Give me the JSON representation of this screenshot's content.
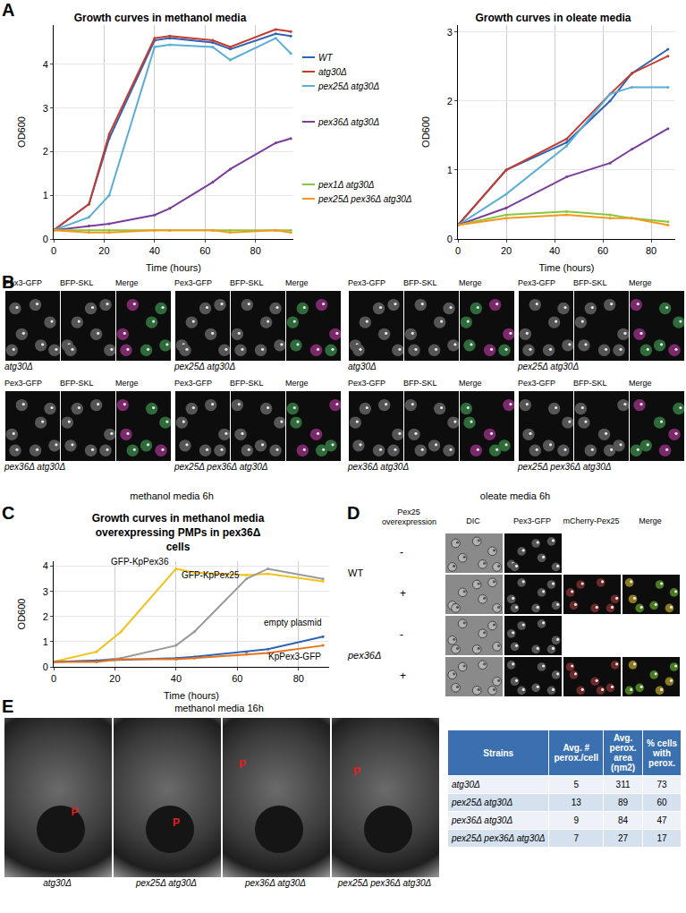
{
  "panel_letters": [
    "A",
    "B",
    "C",
    "D",
    "E"
  ],
  "chart_data": [
    {
      "type": "line",
      "title": "Growth curves in methanol media",
      "x_label": "Time (hours)",
      "y_label": "OD600",
      "x": [
        0,
        14,
        22,
        40,
        46,
        63,
        70,
        88,
        94
      ],
      "xlim": [
        0,
        95
      ],
      "ylim": [
        0,
        4.9
      ],
      "xticks": [
        0,
        20,
        40,
        60,
        80
      ],
      "yticks": [
        0,
        1,
        2,
        3,
        4
      ],
      "grid": true,
      "marker": "circle",
      "series": [
        {
          "name": "WT",
          "color": "#2f64b5",
          "values": [
            0.2,
            0.8,
            2.3,
            4.55,
            4.6,
            4.5,
            4.35,
            4.7,
            4.65
          ]
        },
        {
          "name": "atg30Δ",
          "color": "#c73a2e",
          "values": [
            0.2,
            0.8,
            2.4,
            4.6,
            4.65,
            4.55,
            4.4,
            4.8,
            4.75
          ]
        },
        {
          "name": "pex25Δ atg30Δ",
          "color": "#5aaed6",
          "values": [
            0.2,
            0.5,
            1.0,
            4.4,
            4.45,
            4.4,
            4.1,
            4.6,
            4.25
          ]
        },
        {
          "name": "pex36Δ atg30Δ",
          "color": "#7a3d9c",
          "values": [
            0.2,
            0.3,
            0.35,
            0.55,
            0.7,
            1.3,
            1.6,
            2.2,
            2.3
          ]
        },
        {
          "name": "pex1Δ atg30Δ",
          "color": "#8cc63f",
          "values": [
            0.2,
            0.2,
            0.2,
            0.2,
            0.2,
            0.2,
            0.2,
            0.2,
            0.2
          ]
        },
        {
          "name": "pex25Δ pex36Δ atg30Δ",
          "color": "#f39a1e",
          "values": [
            0.2,
            0.15,
            0.15,
            0.2,
            0.2,
            0.2,
            0.15,
            0.2,
            0.15
          ]
        }
      ]
    },
    {
      "type": "line",
      "title": "Growth curves in oleate media",
      "x_label": "Time (hours)",
      "y_label": "OD600",
      "x": [
        0,
        20,
        45,
        63,
        72,
        87
      ],
      "xlim": [
        0,
        90
      ],
      "ylim": [
        0,
        3.1
      ],
      "xticks": [
        0,
        20,
        40,
        60,
        80
      ],
      "yticks": [
        0,
        1,
        2,
        3
      ],
      "grid": true,
      "marker": "circle",
      "series": [
        {
          "name": "WT",
          "color": "#2f64b5",
          "values": [
            0.2,
            1.0,
            1.4,
            2.0,
            2.4,
            2.75
          ]
        },
        {
          "name": "atg30Δ",
          "color": "#c73a2e",
          "values": [
            0.2,
            1.0,
            1.45,
            2.1,
            2.4,
            2.65
          ]
        },
        {
          "name": "pex25Δ atg30Δ",
          "color": "#5aaed6",
          "values": [
            0.2,
            0.65,
            1.35,
            2.1,
            2.2,
            2.2
          ]
        },
        {
          "name": "pex36Δ atg30Δ",
          "color": "#7a3d9c",
          "values": [
            0.2,
            0.45,
            0.9,
            1.1,
            1.3,
            1.6
          ]
        },
        {
          "name": "pex1Δ atg30Δ",
          "color": "#8cc63f",
          "values": [
            0.2,
            0.35,
            0.4,
            0.35,
            0.3,
            0.25
          ]
        },
        {
          "name": "pex25Δ pex36Δ atg30Δ",
          "color": "#f39a1e",
          "values": [
            0.2,
            0.3,
            0.35,
            0.3,
            0.3,
            0.2
          ]
        }
      ]
    },
    {
      "type": "line",
      "title": "Growth curves in methanol media overexpressing PMPs in pex36Δ cells",
      "x_label": "Time (hours)",
      "y_label": "OD600",
      "x": [
        0,
        14,
        22,
        40,
        46,
        63,
        70,
        88
      ],
      "xlim": [
        0,
        90
      ],
      "ylim": [
        0,
        4.2
      ],
      "xticks": [
        0,
        20,
        40,
        60,
        80
      ],
      "yticks": [
        0,
        1,
        2,
        3,
        4
      ],
      "grid": true,
      "marker": "circle",
      "series": [
        {
          "name": "GFP-KpPex36",
          "color": "#f2c21b",
          "values": [
            0.2,
            0.6,
            1.4,
            3.9,
            3.75,
            3.65,
            3.7,
            3.4
          ]
        },
        {
          "name": "GFP-KpPex25",
          "color": "#9a9a9a",
          "values": [
            0.2,
            0.25,
            0.35,
            0.85,
            1.4,
            3.5,
            3.9,
            3.5
          ]
        },
        {
          "name": "empty plasmid",
          "color": "#2f64b5",
          "values": [
            0.2,
            0.25,
            0.3,
            0.35,
            0.4,
            0.6,
            0.7,
            1.2
          ]
        },
        {
          "name": "KpPex3-GFP",
          "color": "#e8731c",
          "values": [
            0.2,
            0.2,
            0.3,
            0.3,
            0.35,
            0.5,
            0.55,
            0.85
          ]
        }
      ]
    }
  ],
  "panel_B": {
    "channels": [
      "Pex3-GFP",
      "BFP-SKL",
      "Merge"
    ],
    "strains": [
      "atg30Δ",
      "pex25Δ atg30Δ",
      "pex36Δ atg30Δ",
      "pex25Δ pex36Δ atg30Δ"
    ],
    "media": [
      "methanol media 6h",
      "oleate media 6h"
    ]
  },
  "panel_D": {
    "header": "Pex25 overexpression",
    "columns": [
      "DIC",
      "Pex3-GFP",
      "mCherry-Pex25",
      "Merge"
    ],
    "groups": [
      {
        "strain": "WT",
        "rows": [
          "-",
          "+"
        ]
      },
      {
        "strain": "pex36Δ",
        "rows": [
          "-",
          "+"
        ]
      }
    ]
  },
  "panel_E": {
    "condition": "methanol media 16h",
    "images": [
      {
        "strain": "atg30Δ",
        "marker": "P"
      },
      {
        "strain": "pex25Δ atg30Δ",
        "marker": "P"
      },
      {
        "strain": "pex36Δ atg30Δ",
        "marker": "P"
      },
      {
        "strain": "pex25Δ pex36Δ atg30Δ",
        "marker": "P"
      }
    ],
    "table": {
      "header": [
        "Strains",
        "Avg. # perox./cell",
        "Avg. perox. area (ηm2)",
        "% cells with perox."
      ],
      "rows": [
        [
          "atg30Δ",
          5,
          311,
          73
        ],
        [
          "pex25Δ atg30Δ",
          13,
          89,
          60
        ],
        [
          "pex36Δ atg30Δ",
          9,
          84,
          47
        ],
        [
          "pex25Δ pex36Δ atg30Δ",
          7,
          27,
          17
        ]
      ]
    }
  }
}
